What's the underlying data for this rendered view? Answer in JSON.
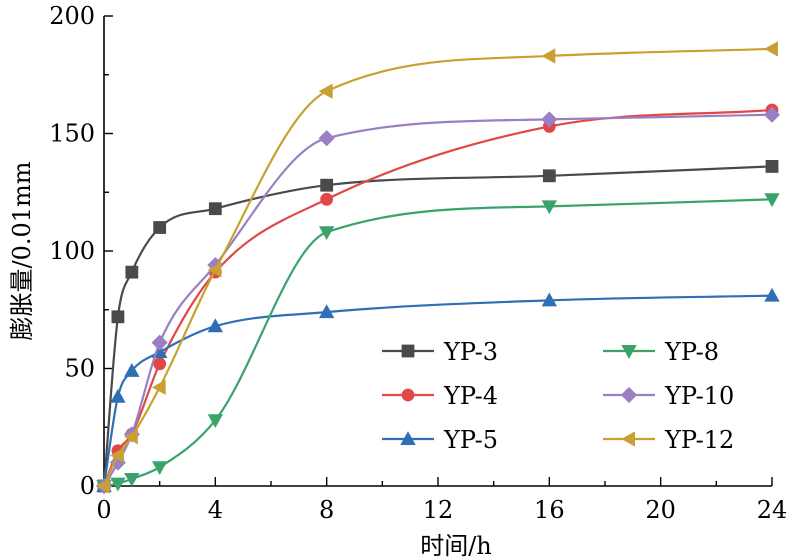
{
  "chart_data": {
    "type": "line",
    "title": "",
    "xlabel": "时间/h",
    "ylabel": "膨胀量/0.01mm",
    "xlim": [
      0,
      24
    ],
    "ylim": [
      0,
      200
    ],
    "xticks": [
      0,
      4,
      8,
      12,
      16,
      20,
      24
    ],
    "yticks": [
      0,
      50,
      100,
      150,
      200
    ],
    "grid": false,
    "legend_position": "lower-right",
    "series": [
      {
        "name": "YP-3",
        "color": "#4a4a4a",
        "marker": "square",
        "x": [
          0,
          0.5,
          1,
          2,
          4,
          8,
          16,
          24
        ],
        "y": [
          0,
          72,
          91,
          110,
          118,
          128,
          132,
          136
        ]
      },
      {
        "name": "YP-4",
        "color": "#e04848",
        "marker": "circle",
        "x": [
          0,
          0.5,
          1,
          2,
          4,
          8,
          16,
          24
        ],
        "y": [
          0,
          15,
          22,
          52,
          91,
          122,
          153,
          160
        ]
      },
      {
        "name": "YP-5",
        "color": "#2e6fb5",
        "marker": "triangle-up",
        "x": [
          0,
          0.5,
          1,
          2,
          4,
          8,
          16,
          24
        ],
        "y": [
          0,
          38,
          49,
          57,
          68,
          74,
          79,
          81
        ]
      },
      {
        "name": "YP-8",
        "color": "#3aa36b",
        "marker": "triangle-down",
        "x": [
          0,
          0.5,
          1,
          2,
          4,
          8,
          16,
          24
        ],
        "y": [
          0,
          1,
          3,
          8,
          28,
          108,
          119,
          122
        ]
      },
      {
        "name": "YP-10",
        "color": "#9a7fc4",
        "marker": "diamond",
        "x": [
          0,
          0.5,
          1,
          2,
          4,
          8,
          16,
          24
        ],
        "y": [
          0,
          10,
          22,
          61,
          94,
          148,
          156,
          158
        ]
      },
      {
        "name": "YP-12",
        "color": "#c9a032",
        "marker": "triangle-left",
        "x": [
          0,
          0.5,
          1,
          2,
          4,
          8,
          16,
          24
        ],
        "y": [
          0,
          13,
          21,
          42,
          92,
          168,
          183,
          186
        ]
      }
    ]
  }
}
